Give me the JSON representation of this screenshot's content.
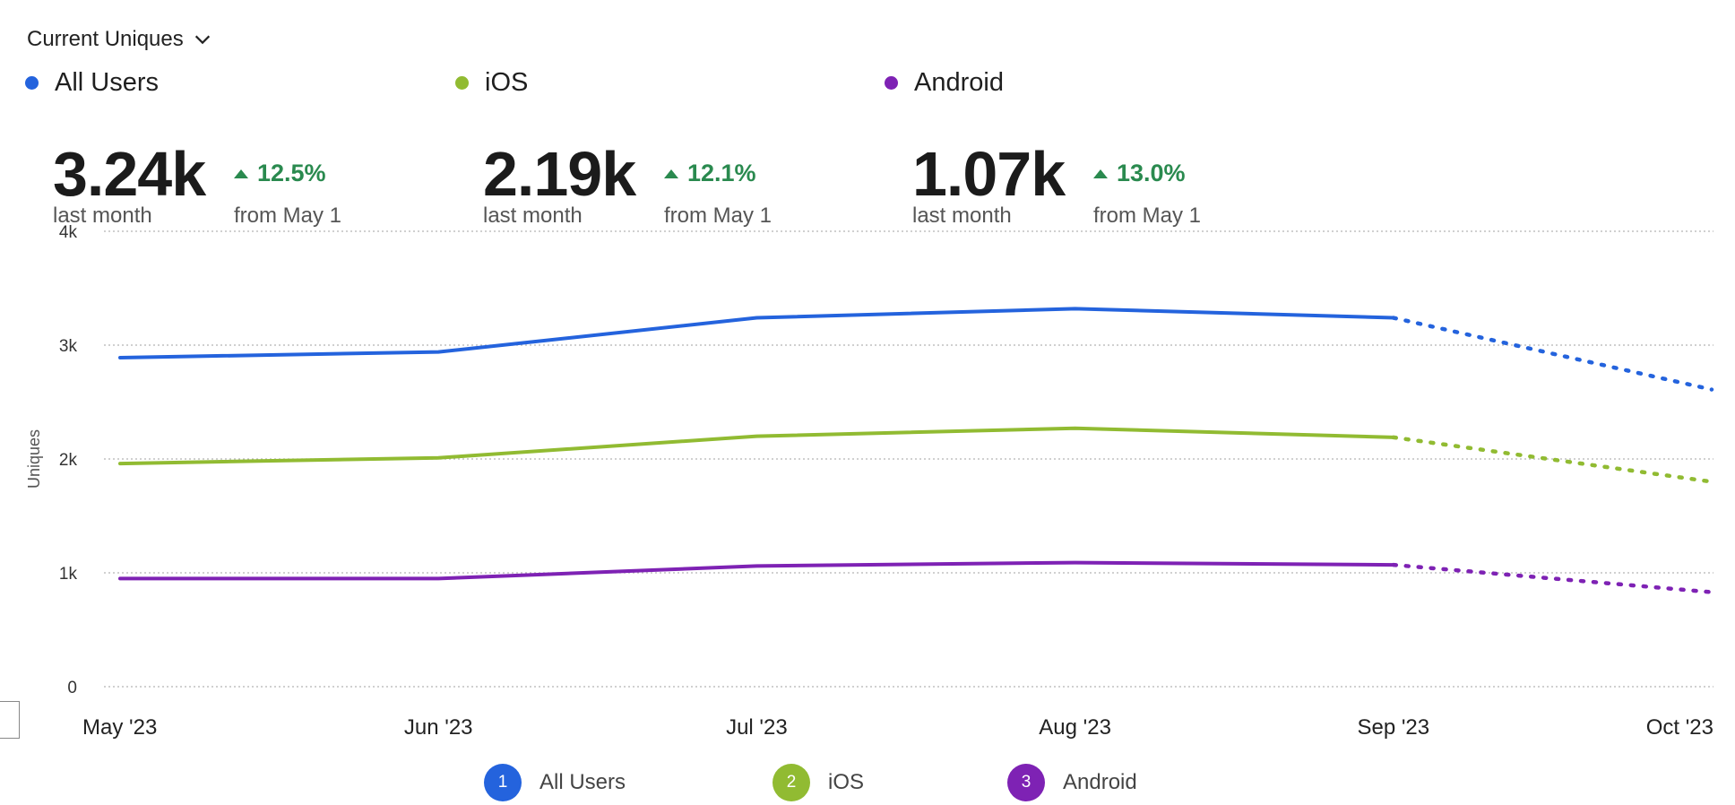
{
  "metric_selector": {
    "label": "Current Uniques",
    "icon": "chevron-down-icon"
  },
  "summaries": [
    {
      "name": "All Users",
      "color": "#2463dd",
      "value": "3.24k",
      "value_caption": "last month",
      "delta": "12.5%",
      "delta_caption": "from May 1",
      "delta_icon": "triangle-up-icon"
    },
    {
      "name": "iOS",
      "color": "#91bb32",
      "value": "2.19k",
      "value_caption": "last month",
      "delta": "12.1%",
      "delta_caption": "from May 1",
      "delta_icon": "triangle-up-icon"
    },
    {
      "name": "Android",
      "color": "#7e22b4",
      "value": "1.07k",
      "value_caption": "last month",
      "delta": "13.0%",
      "delta_caption": "from May 1",
      "delta_icon": "triangle-up-icon"
    }
  ],
  "chart_data": {
    "type": "line",
    "x": [
      "May '23",
      "Jun '23",
      "Jul '23",
      "Aug '23",
      "Sep '23",
      "Oct '23"
    ],
    "ylabel": "Uniques",
    "yticks": [
      "0",
      "1k",
      "2k",
      "3k",
      "4k"
    ],
    "ytick_values": [
      0,
      1000,
      2000,
      3000,
      4000
    ],
    "ylim": [
      0,
      4000
    ],
    "grid": true,
    "projection": "dotted segment from Sep '23 to Oct '23",
    "series": [
      {
        "name": "All Users",
        "color": "#2463dd",
        "values": [
          2890,
          2940,
          3240,
          3320,
          3240,
          2610
        ]
      },
      {
        "name": "iOS",
        "color": "#91bb32",
        "values": [
          1960,
          2010,
          2200,
          2270,
          2190,
          1800
        ]
      },
      {
        "name": "Android",
        "color": "#7e22b4",
        "values": [
          950,
          950,
          1060,
          1090,
          1070,
          830
        ]
      }
    ]
  },
  "legend": [
    {
      "index": "1",
      "name": "All Users",
      "color": "#2463dd"
    },
    {
      "index": "2",
      "name": "iOS",
      "color": "#91bb32"
    },
    {
      "index": "3",
      "name": "Android",
      "color": "#7e22b4"
    }
  ]
}
